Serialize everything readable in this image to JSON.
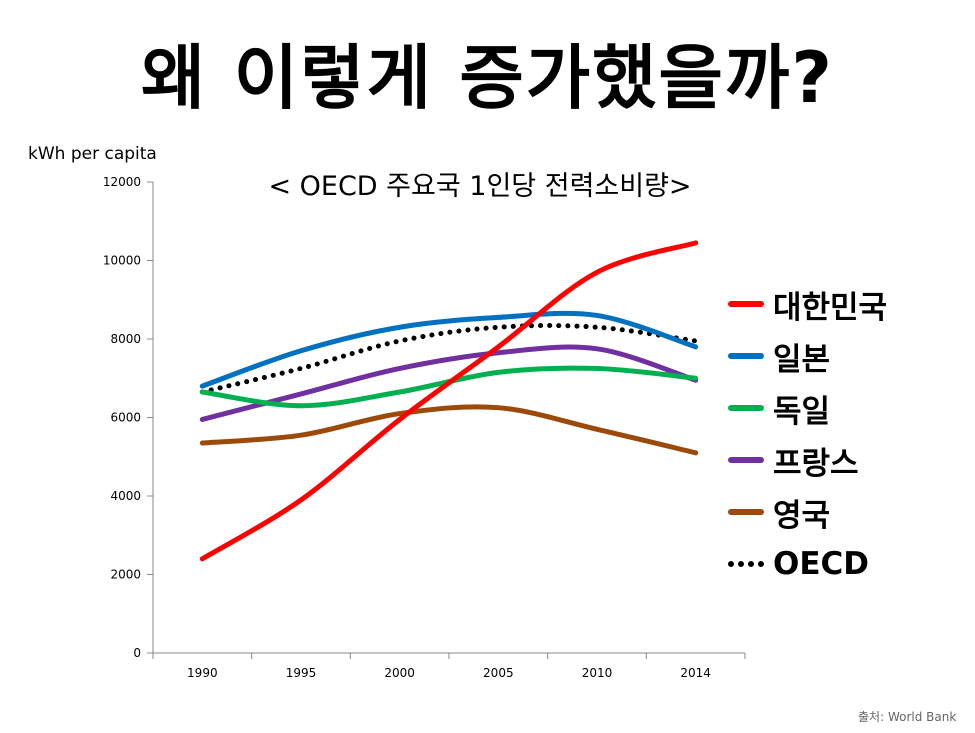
{
  "page_title": "왜 이렇게 증가했을까?",
  "source_note": "출처: World Bank",
  "colors": {
    "korea": "#ff0000",
    "japan": "#0070c0",
    "germany": "#00b050",
    "france": "#7030a0",
    "uk": "#9c4a09",
    "oecd": "#000000"
  },
  "chart_data": {
    "type": "line",
    "title": "< OECD 주요국 1인당 전력소비량>",
    "ylabel": "kWh per capita",
    "xlabel": "",
    "categories": [
      "1990",
      "1995",
      "2000",
      "2005",
      "2010",
      "2014"
    ],
    "ylim": [
      0,
      12000
    ],
    "yticks": [
      0,
      2000,
      4000,
      6000,
      8000,
      10000,
      12000
    ],
    "grid": false,
    "legend_position": "right",
    "series": [
      {
        "name": "대한민국",
        "color": "#ff0000",
        "style": "solid",
        "values": [
          2400,
          3900,
          5950,
          7800,
          9700,
          10450
        ]
      },
      {
        "name": "일본",
        "color": "#0070c0",
        "style": "solid",
        "values": [
          6800,
          7700,
          8300,
          8550,
          8600,
          7800
        ]
      },
      {
        "name": "독일",
        "color": "#00b050",
        "style": "solid",
        "values": [
          6650,
          6300,
          6650,
          7150,
          7250,
          7000
        ]
      },
      {
        "name": "프랑스",
        "color": "#7030a0",
        "style": "solid",
        "values": [
          5950,
          6600,
          7250,
          7650,
          7750,
          6950
        ]
      },
      {
        "name": "영국",
        "color": "#9c4a09",
        "style": "solid",
        "values": [
          5350,
          5550,
          6100,
          6250,
          5700,
          5100
        ]
      },
      {
        "name": "OECD",
        "color": "#000000",
        "style": "dotted",
        "values": [
          6650,
          7250,
          7950,
          8300,
          8300,
          7950
        ]
      }
    ]
  }
}
